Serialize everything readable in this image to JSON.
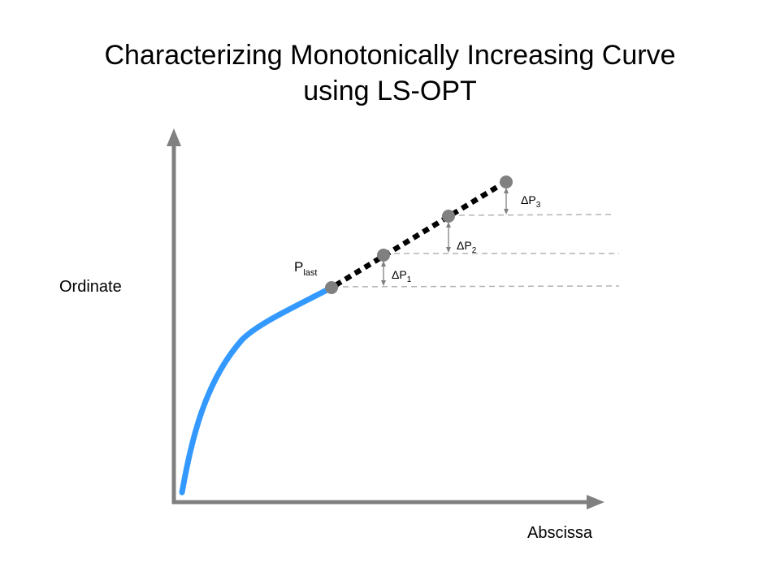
{
  "title": {
    "line1": "Characterizing Monotonically Increasing Curve",
    "line2": "using LS-OPT"
  },
  "axes": {
    "ylabel": "Ordinate",
    "xlabel": "Abscissa"
  },
  "points": {
    "last_base": "P",
    "last_sub": "last"
  },
  "deltas": [
    {
      "symbol": "Δ",
      "base": "P",
      "sub": "1"
    },
    {
      "symbol": "Δ",
      "base": "P",
      "sub": "2"
    },
    {
      "symbol": "Δ",
      "base": "P",
      "sub": "3"
    }
  ],
  "colors": {
    "curve": "#3399ff",
    "axis": "#808080",
    "point": "#808080",
    "extrapolation": "#000000",
    "guide": "#b3b3b3"
  }
}
